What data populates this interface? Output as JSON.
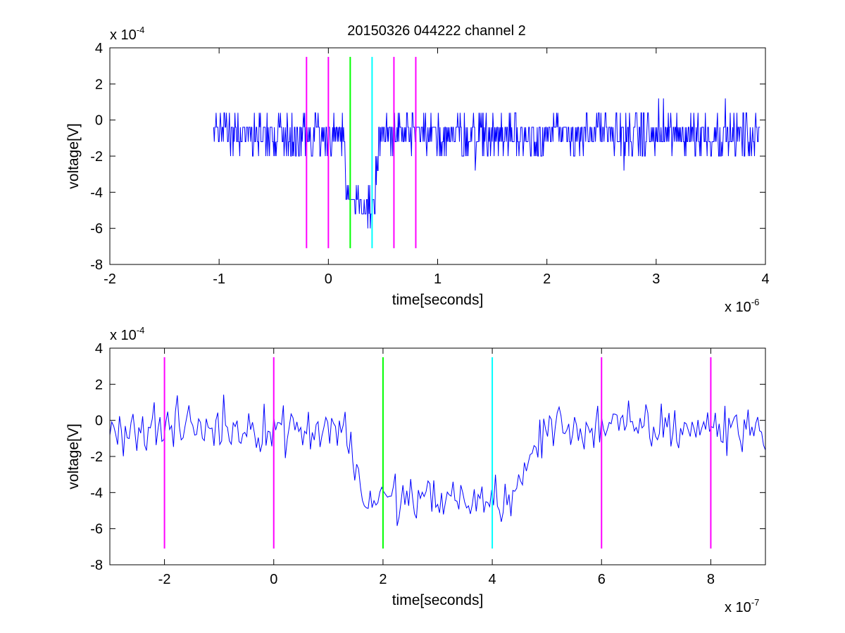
{
  "chart_data": {
    "title": "20150326 044222 channel 2",
    "colors": {
      "signal": "#0000ff",
      "marker": "#ff00ff",
      "onset": "#00ff00",
      "end": "#00ffff",
      "axes": "#000000"
    },
    "panels": [
      {
        "type": "line",
        "xlabel": "time[seconds]",
        "ylabel": "voltage[V]",
        "x_exponent_base": "x 10",
        "x_exponent_power": "-6",
        "y_exponent_base": "x 10",
        "y_exponent_power": "-4",
        "xlim": [
          -2,
          4
        ],
        "ylim": [
          -8,
          4
        ],
        "xticks": [
          "-2",
          "-1",
          "0",
          "1",
          "2",
          "3",
          "4"
        ],
        "yticks": [
          "4",
          "2",
          "0",
          "-2",
          "-4",
          "-6",
          "-8"
        ],
        "signal_x_range": [
          -1.05,
          3.95
        ],
        "markers": [
          {
            "x": -0.2,
            "color": "marker"
          },
          {
            "x": 0.0,
            "color": "marker"
          },
          {
            "x": 0.2,
            "color": "onset"
          },
          {
            "x": 0.4,
            "color": "end"
          },
          {
            "x": 0.6,
            "color": "marker"
          },
          {
            "x": 0.8,
            "color": "marker"
          }
        ],
        "marker_y_range": [
          -7.1,
          3.5
        ],
        "dip": {
          "x_start": 0.17,
          "x_end": 0.42,
          "level": -4.4
        }
      },
      {
        "type": "line",
        "xlabel": "time[seconds]",
        "ylabel": "voltage[V]",
        "x_exponent_base": "x 10",
        "x_exponent_power": "-7",
        "y_exponent_base": "x 10",
        "y_exponent_power": "-4",
        "xlim": [
          -3,
          9
        ],
        "ylim": [
          -8,
          4
        ],
        "xticks": [
          "-2",
          "0",
          "2",
          "4",
          "6",
          "8"
        ],
        "yticks": [
          "4",
          "2",
          "0",
          "-2",
          "-4",
          "-6",
          "-8"
        ],
        "signal_x_range": [
          -3,
          9
        ],
        "markers": [
          {
            "x": -2,
            "color": "marker"
          },
          {
            "x": 0,
            "color": "marker"
          },
          {
            "x": 2,
            "color": "onset"
          },
          {
            "x": 4,
            "color": "end"
          },
          {
            "x": 6,
            "color": "marker"
          },
          {
            "x": 8,
            "color": "marker"
          }
        ],
        "marker_y_range": [
          -7.1,
          3.5
        ],
        "dip": {
          "x_start": 1.65,
          "x_end": 4.4,
          "level": -4.4
        }
      }
    ]
  }
}
